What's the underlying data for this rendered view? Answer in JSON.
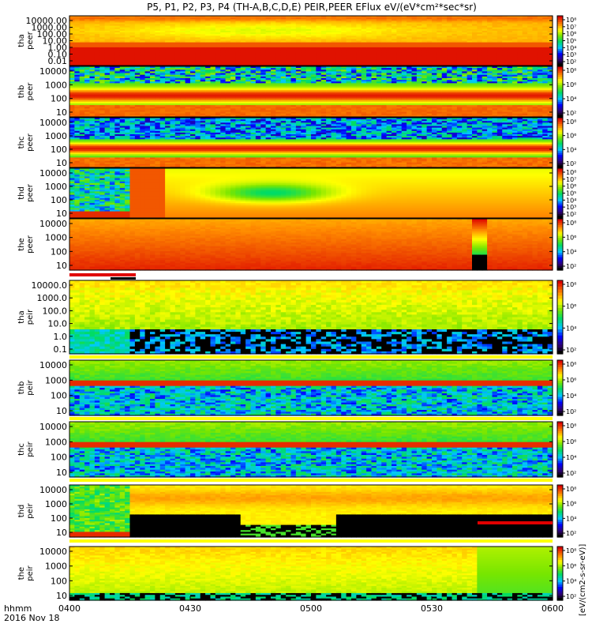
{
  "title": "P5, P1, P2, P3, P4 (TH-A,B,C,D,E) PEIR,PEER EFlux eV/(eV*cm²*sec*sr)",
  "colorbar_unit_label": "[eV/(cm2-s-sr-eV)]",
  "time_axis": {
    "label_line1": "hhmm",
    "label_line2": "2016 Nov 18",
    "ticks": [
      "0400",
      "0430",
      "0500",
      "0530",
      "0600"
    ]
  },
  "chart_data": {
    "type": "heatmap",
    "x": {
      "start": "04:00",
      "end": "06:00",
      "unit": "hhmm",
      "date": "2016 Nov 18"
    },
    "colormap": "rainbow (black, blue, cyan, green, yellow, orange, red)",
    "panels": [
      {
        "label1": "tha",
        "label2": "peer",
        "yscale": "log",
        "yticks": [
          "10000.00",
          "1000.00",
          "100.00",
          "10.00",
          "1.00",
          "0.10",
          "0.01"
        ],
        "cticks": [
          "10⁸",
          "10⁷",
          "10⁶",
          "10⁵",
          "10⁴",
          "10³",
          "10²"
        ],
        "pattern": "peer_a"
      },
      {
        "label1": "thb",
        "label2": "peer",
        "yscale": "log",
        "yticks": [
          "10000",
          "1000",
          "100",
          "10"
        ],
        "cticks": [
          "10⁸",
          "10⁶",
          "10⁴",
          "10²"
        ],
        "pattern": "peer_bc"
      },
      {
        "label1": "thc",
        "label2": "peer",
        "yscale": "log",
        "yticks": [
          "10000",
          "1000",
          "100",
          "10"
        ],
        "cticks": [
          "10⁸",
          "10⁶",
          "10⁴",
          "10²"
        ],
        "pattern": "peer_c"
      },
      {
        "label1": "thd",
        "label2": "peer",
        "yscale": "log",
        "yticks": [
          "10000",
          "1000",
          "100",
          "10"
        ],
        "cticks": [
          "10⁸",
          "10⁷",
          "10⁶",
          "10⁵",
          "10⁴",
          "10³",
          "10²"
        ],
        "pattern": "peer_d"
      },
      {
        "label1": "the",
        "label2": "peer",
        "yscale": "log",
        "yticks": [
          "10000",
          "1000",
          "100",
          "10"
        ],
        "cticks": [
          "10⁸",
          "10⁶",
          "10⁴",
          "10²"
        ],
        "pattern": "peer_e"
      },
      {
        "label1": "tha",
        "label2": "peir",
        "yscale": "log",
        "yticks": [
          "10000.0",
          "1000.0",
          "100.0",
          "10.0",
          "1.0",
          "0.1"
        ],
        "cticks": [
          "10⁸",
          "10⁶",
          "10⁴",
          "10²"
        ],
        "pattern": "peir_a"
      },
      {
        "label1": "thb",
        "label2": "peir",
        "yscale": "log",
        "yticks": [
          "10000",
          "1000",
          "100",
          "10"
        ],
        "cticks": [
          "10⁸",
          "10⁶",
          "10⁴",
          "10²"
        ],
        "pattern": "peir_bc"
      },
      {
        "label1": "thc",
        "label2": "peir",
        "yscale": "log",
        "yticks": [
          "10000",
          "1000",
          "100",
          "10"
        ],
        "cticks": [
          "10⁸",
          "10⁶",
          "10⁴",
          "10²"
        ],
        "pattern": "peir_bc"
      },
      {
        "label1": "thd",
        "label2": "peir",
        "yscale": "log",
        "yticks": [
          "10000",
          "1000",
          "100",
          "10"
        ],
        "cticks": [
          "10⁸",
          "10⁶",
          "10⁴",
          "10²"
        ],
        "pattern": "peir_d"
      },
      {
        "label1": "the",
        "label2": "peir",
        "yscale": "log",
        "yticks": [
          "10000",
          "1000",
          "100",
          "10"
        ],
        "cticks": [
          "10⁸",
          "10⁶",
          "10⁴",
          "10²"
        ],
        "pattern": "peir_e"
      }
    ]
  }
}
